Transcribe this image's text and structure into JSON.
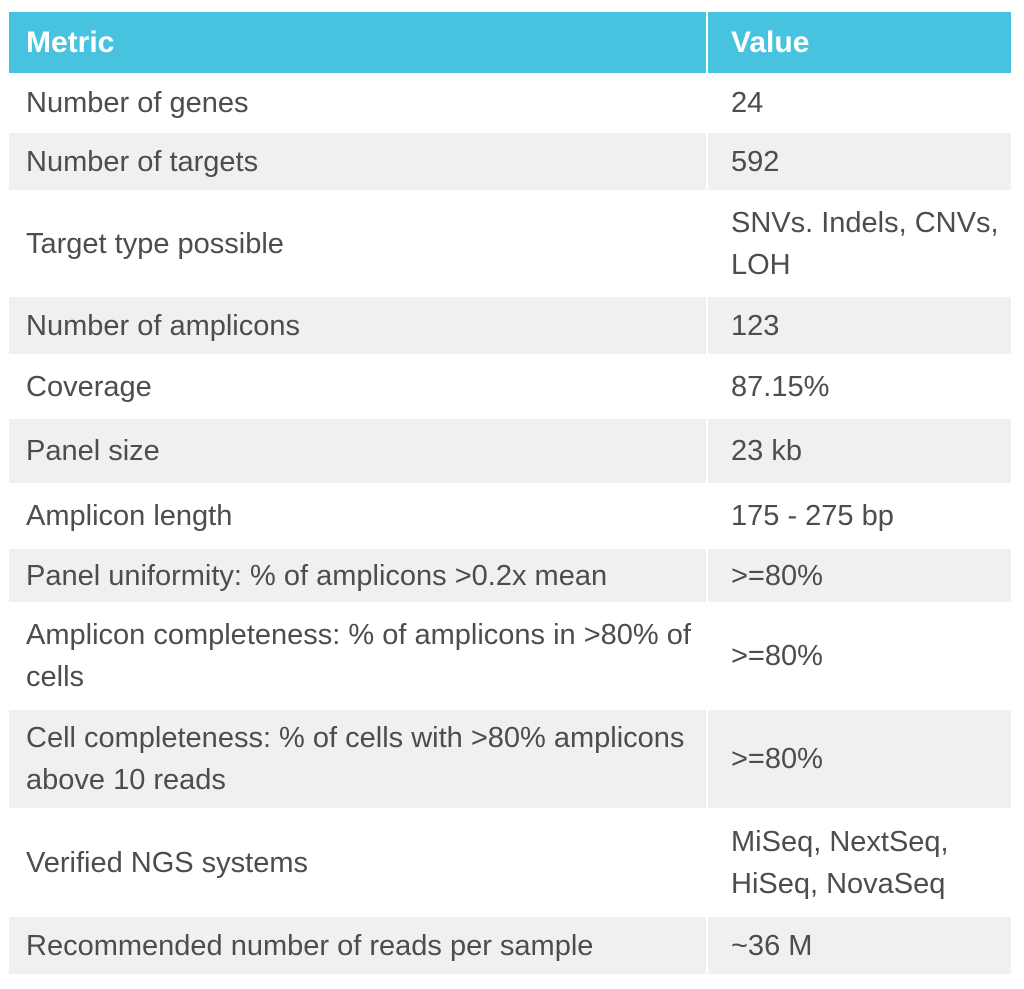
{
  "table": {
    "headers": [
      "Metric",
      "Value"
    ],
    "rows": [
      {
        "metric": "Number of genes",
        "value": "24"
      },
      {
        "metric": "Number of targets",
        "value": "592"
      },
      {
        "metric": "Target type possible",
        "value": "SNVs. Indels, CNVs, LOH"
      },
      {
        "metric": "Number of amplicons",
        "value": "123"
      },
      {
        "metric": "Coverage",
        "value": "87.15%"
      },
      {
        "metric": "Panel size",
        "value": "23 kb"
      },
      {
        "metric": "Amplicon length",
        "value": "175 - 275 bp"
      },
      {
        "metric": "Panel uniformity: % of amplicons >0.2x mean",
        "value": ">=80%"
      },
      {
        "metric": "Amplicon completeness: % of amplicons in >80% of cells",
        "value": ">=80%"
      },
      {
        "metric": "Cell completeness: % of cells with >80% amplicons above 10 reads",
        "value": ">=80%"
      },
      {
        "metric": "Verified NGS systems",
        "value": "MiSeq, NextSeq, HiSeq, NovaSeq"
      },
      {
        "metric": "Recommended number of reads per sample",
        "value": "~36 M"
      }
    ]
  },
  "colors": {
    "header_bg": "#47c3e0",
    "header_text": "#ffffff",
    "row_alt_bg": "#f0f0f0",
    "body_text": "#4d4d4d"
  }
}
